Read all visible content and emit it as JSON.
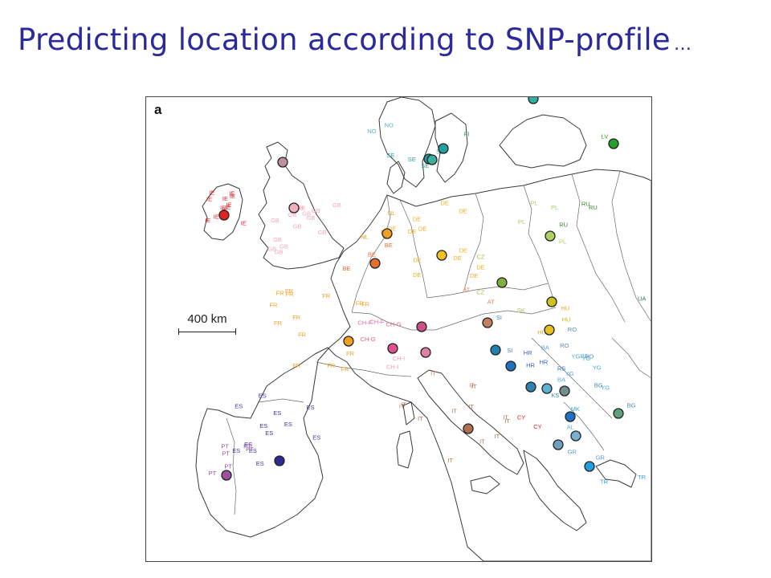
{
  "slide": {
    "title": "Predicting location according to SNP-profile",
    "ellipsis": "…"
  },
  "map": {
    "panel_label": "a",
    "scale_label": "400 km",
    "colors": {
      "IE": "#e02424",
      "GB": "#f0a8b8",
      "NO": "#5ab0e0",
      "SE": "#2aa0a0",
      "FI": "#2a9a4a",
      "DE": "#f0b020",
      "NL": "#e0a020",
      "BE": "#e07030",
      "FR": "#f5a020",
      "CH-F": "#e56aa8",
      "CH-G": "#e06090",
      "CH-I": "#f09ab8",
      "AT": "#e08a50",
      "IT": "#b07050",
      "ES": "#3a3aa0",
      "PT": "#9a4aa8",
      "CZ": "#a8c050",
      "PL": "#a8d060",
      "RU": "#2e8a2e",
      "HU": "#d0b020",
      "HR": "#3060c0",
      "SI": "#4a80c8",
      "RS": "#3070b0",
      "BA": "#60a8d0",
      "YG": "#4aa8e0",
      "RO": "#5a8ab0",
      "BG": "#4a8aa0",
      "GR": "#5aa0d0",
      "TR": "#30a0e0",
      "MK": "#40a0d0",
      "AL": "#5ab0d8",
      "KS": "#3090c8",
      "CY": "#e02020",
      "LV": "#28a028",
      "UA": "#1a7a6a",
      "SK": "#b0c060"
    },
    "labels": [
      "IE",
      "IE",
      "IE",
      "IE",
      "IE",
      "IE",
      "IE",
      "IE",
      "IE",
      "IE",
      "IE",
      "IE",
      "GB",
      "GB",
      "GB",
      "GB",
      "GB",
      "GB",
      "GB",
      "GB",
      "GB",
      "GB",
      "GB",
      "GB",
      "GB",
      "GB",
      "NO",
      "NO",
      "SE",
      "SE",
      "SE",
      "SE",
      "FI",
      "LV",
      "DE",
      "DE",
      "DE",
      "DE",
      "DE",
      "DE",
      "DE",
      "DE",
      "DE",
      "DE",
      "DE",
      "DE",
      "NL",
      "NL",
      "NL",
      "BE",
      "BE",
      "BE",
      "FR",
      "FR",
      "FR",
      "FR",
      "FR",
      "FR",
      "FR",
      "FR",
      "FR",
      "FR",
      "FR",
      "FR",
      "FR",
      "FR",
      "CH-F",
      "CH-F",
      "CH-G",
      "CH-G",
      "CH-I",
      "CH-I",
      "AT",
      "AT",
      "CZ",
      "CZ",
      "PL",
      "PL",
      "PL",
      "PL",
      "RU",
      "RU",
      "RU",
      "HU",
      "HU",
      "HU",
      "HR",
      "HR",
      "HR",
      "SI",
      "SI",
      "IT",
      "IT",
      "IT",
      "IT",
      "IT",
      "IT",
      "IT",
      "IT",
      "IT",
      "IT",
      "IT",
      "IT",
      "IT",
      "ES",
      "ES",
      "ES",
      "ES",
      "ES",
      "ES",
      "ES",
      "ES",
      "ES",
      "ES",
      "ES",
      "ES",
      "PT",
      "PT",
      "PT",
      "PT",
      "PT",
      "PT",
      "YG",
      "YG",
      "YG",
      "YG",
      "YG",
      "BA",
      "BA",
      "BA",
      "RO",
      "RO",
      "RO",
      "BG",
      "BG",
      "GR",
      "GR",
      "TR",
      "TR",
      "MK",
      "AL",
      "KS",
      "CY",
      "CY",
      "UA",
      "RS",
      "SK"
    ],
    "centroids": [
      {
        "code": "IE",
        "color": "#e02424"
      },
      {
        "code": "GB",
        "color": "#f0b0c0"
      },
      {
        "code": "GB-N",
        "color": "#c090a0"
      },
      {
        "code": "SE",
        "color": "#2aa0a0"
      },
      {
        "code": "NO",
        "color": "#3ab0a0"
      },
      {
        "code": "FI",
        "color": "#20a0a0"
      },
      {
        "code": "LV",
        "color": "#28a028"
      },
      {
        "code": "NL",
        "color": "#f0a020"
      },
      {
        "code": "BE",
        "color": "#e07030"
      },
      {
        "code": "DE",
        "color": "#f0c020"
      },
      {
        "code": "FR",
        "color": "#f0a020"
      },
      {
        "code": "CH-F",
        "color": "#e0508a"
      },
      {
        "code": "CH-G",
        "color": "#d0508a"
      },
      {
        "code": "CH-I",
        "color": "#e080a8"
      },
      {
        "code": "AT",
        "color": "#c08060"
      },
      {
        "code": "CZ",
        "color": "#80b040"
      },
      {
        "code": "PL",
        "color": "#b0d060"
      },
      {
        "code": "HU",
        "color": "#d0c020"
      },
      {
        "code": "HU-2",
        "color": "#e8c020"
      },
      {
        "code": "SI",
        "color": "#2080b0"
      },
      {
        "code": "HR",
        "color": "#2070c0"
      },
      {
        "code": "RS",
        "color": "#3080b0"
      },
      {
        "code": "BA",
        "color": "#60b0d0"
      },
      {
        "code": "RO",
        "color": "#709090"
      },
      {
        "code": "BG",
        "color": "#60a080"
      },
      {
        "code": "KS",
        "color": "#2070c8"
      },
      {
        "code": "MK",
        "color": "#7ab0d0"
      },
      {
        "code": "AL",
        "color": "#70a0c0"
      },
      {
        "code": "GR",
        "color": "#20a0e0"
      },
      {
        "code": "IT",
        "color": "#b07050"
      },
      {
        "code": "ES",
        "color": "#2a2a90"
      },
      {
        "code": "PT",
        "color": "#a050a0"
      },
      {
        "code": "TOP",
        "color": "#30b0a0"
      }
    ]
  }
}
